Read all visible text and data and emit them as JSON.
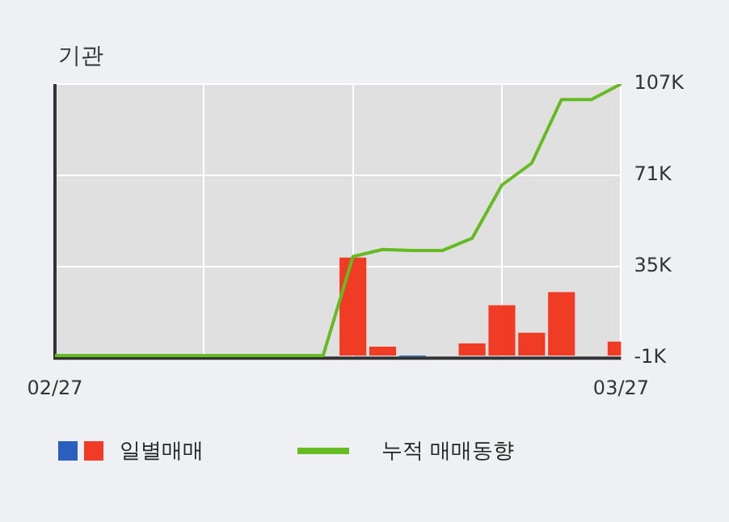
{
  "chart_data": {
    "type": "bar",
    "title": "기관",
    "categories": [
      "02/27",
      null,
      null,
      null,
      null,
      null,
      null,
      null,
      null,
      null,
      null,
      null,
      null,
      null,
      null,
      null,
      null,
      null,
      null,
      "03/27"
    ],
    "series": [
      {
        "name": "일별매매",
        "colors": [
          null,
          null,
          null,
          null,
          null,
          null,
          null,
          null,
          null,
          null,
          "#f03c24",
          "#f03c24",
          "#2a5fc0",
          null,
          "#f03c24",
          "#f03c24",
          "#f03c24",
          "#f03c24",
          null,
          "#f03c24"
        ],
        "values": [
          null,
          null,
          null,
          null,
          null,
          null,
          null,
          null,
          null,
          null,
          38.6,
          3.5,
          -0.4,
          null,
          4.8,
          19.8,
          9.0,
          25.0,
          null,
          5.5
        ]
      },
      {
        "name": "누적 매매동향",
        "type": "line",
        "color": "#66bb22",
        "values": [
          0,
          0,
          0,
          0,
          0,
          0,
          0,
          0,
          0,
          0,
          39.0,
          41.8,
          41.4,
          41.4,
          46.2,
          67.2,
          75.8,
          100.9,
          100.9,
          107
        ]
      }
    ],
    "ylim": [
      -1,
      107
    ],
    "yticks": [
      {
        "value": -1,
        "label": "-1K"
      },
      {
        "value": 35,
        "label": "35K"
      },
      {
        "value": 71,
        "label": "71K"
      },
      {
        "value": 107,
        "label": "107K"
      }
    ],
    "grid": true,
    "legend": "bottom",
    "marker": "none"
  }
}
